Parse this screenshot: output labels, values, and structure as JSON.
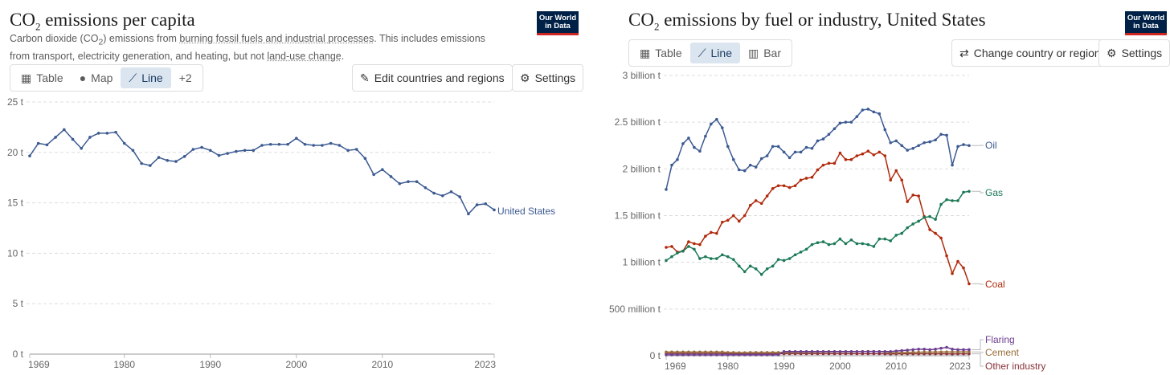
{
  "left": {
    "title_pre": "CO",
    "title_sub": "2",
    "title_post": " emissions per capita",
    "subtitle_parts": [
      "Carbon dioxide (CO",
      "2",
      ") emissions from ",
      "burning fossil fuels and industrial processes",
      ". This includes emissions from transport, electricity generation, and heating, but not ",
      "land-use change",
      "."
    ],
    "logo": "Our World in Data",
    "tabs": [
      {
        "label": "Table",
        "icon": "table-icon"
      },
      {
        "label": "Map",
        "icon": "globe-icon"
      },
      {
        "label": "Line",
        "icon": "line-chart-icon",
        "active": true
      },
      {
        "label": "+2"
      }
    ],
    "edit_button": "Edit countries and regions",
    "settings_button": "Settings"
  },
  "right": {
    "title_pre": "CO",
    "title_sub": "2",
    "title_post": " emissions by fuel or industry, United States",
    "logo": "Our World in Data",
    "tabs": [
      {
        "label": "Table",
        "icon": "table-icon"
      },
      {
        "label": "Line",
        "icon": "line-chart-icon",
        "active": true
      },
      {
        "label": "Bar",
        "icon": "bar-chart-icon"
      }
    ],
    "change_button": "Change country or region",
    "settings_button": "Settings"
  },
  "chart_data": [
    {
      "type": "line",
      "title": "CO2 emissions per capita",
      "ylabel": "t",
      "ylim": [
        0,
        25
      ],
      "yticks": [
        {
          "v": 0,
          "label": "0 t"
        },
        {
          "v": 5,
          "label": "5 t"
        },
        {
          "v": 10,
          "label": "10 t"
        },
        {
          "v": 15,
          "label": "15 t"
        },
        {
          "v": 20,
          "label": "20 t"
        },
        {
          "v": 25,
          "label": "25 t"
        }
      ],
      "xticks": [
        1969,
        1980,
        1990,
        2000,
        2010,
        2023
      ],
      "xstart": 1969,
      "xend": 2023,
      "series": [
        {
          "name": "United States",
          "color": "#3c5a92",
          "values": [
            19.65,
            20.9,
            20.75,
            21.5,
            22.26,
            21.3,
            20.4,
            21.5,
            21.9,
            21.9,
            22.0,
            20.9,
            20.2,
            18.9,
            18.7,
            19.5,
            19.2,
            19.1,
            19.6,
            20.3,
            20.5,
            20.2,
            19.7,
            19.9,
            20.1,
            20.2,
            20.2,
            20.7,
            20.8,
            20.8,
            20.8,
            21.4,
            20.8,
            20.7,
            20.7,
            20.9,
            20.7,
            20.2,
            20.3,
            19.4,
            17.8,
            18.3,
            17.6,
            16.9,
            17.1,
            17.1,
            16.5,
            15.96,
            15.7,
            16.1,
            15.6,
            13.9,
            14.8,
            14.9,
            14.3
          ]
        }
      ]
    },
    {
      "type": "line",
      "title": "CO2 emissions by fuel or industry, United States",
      "ylabel": "billion t",
      "ylim": [
        0,
        3
      ],
      "yticks": [
        {
          "v": 0,
          "label": "0 t"
        },
        {
          "v": 0.5,
          "label": "500 million t"
        },
        {
          "v": 1,
          "label": "1 billion t"
        },
        {
          "v": 1.5,
          "label": "1.5 billion t"
        },
        {
          "v": 2,
          "label": "2 billion t"
        },
        {
          "v": 2.5,
          "label": "2.5 billion t"
        },
        {
          "v": 3,
          "label": "3 billion t"
        }
      ],
      "xticks": [
        1969,
        1980,
        1990,
        2000,
        2010,
        2023
      ],
      "xstart": 1969,
      "xend": 2023,
      "series": [
        {
          "name": "Oil",
          "color": "#3c5a92",
          "values": [
            1.78,
            2.04,
            2.1,
            2.27,
            2.33,
            2.23,
            2.19,
            2.35,
            2.48,
            2.53,
            2.44,
            2.24,
            2.1,
            1.99,
            1.98,
            2.04,
            2.02,
            2.11,
            2.14,
            2.24,
            2.24,
            2.18,
            2.12,
            2.18,
            2.18,
            2.23,
            2.22,
            2.3,
            2.32,
            2.37,
            2.43,
            2.49,
            2.5,
            2.5,
            2.56,
            2.63,
            2.64,
            2.61,
            2.59,
            2.42,
            2.28,
            2.3,
            2.25,
            2.2,
            2.22,
            2.25,
            2.28,
            2.29,
            2.31,
            2.37,
            2.36,
            2.04,
            2.24,
            2.26,
            2.25
          ]
        },
        {
          "name": "Gas",
          "color": "#1b7a55",
          "values": [
            1.02,
            1.06,
            1.1,
            1.12,
            1.17,
            1.14,
            1.04,
            1.06,
            1.04,
            1.04,
            1.08,
            1.06,
            1.03,
            0.96,
            0.9,
            0.96,
            0.93,
            0.87,
            0.93,
            0.96,
            1.03,
            1.02,
            1.04,
            1.08,
            1.11,
            1.14,
            1.19,
            1.21,
            1.22,
            1.19,
            1.2,
            1.25,
            1.2,
            1.24,
            1.2,
            1.2,
            1.19,
            1.17,
            1.25,
            1.25,
            1.23,
            1.29,
            1.31,
            1.37,
            1.41,
            1.44,
            1.48,
            1.49,
            1.46,
            1.62,
            1.67,
            1.66,
            1.66,
            1.75,
            1.76
          ]
        },
        {
          "name": "Coal",
          "color": "#b02a0c",
          "values": [
            1.16,
            1.17,
            1.11,
            1.12,
            1.22,
            1.2,
            1.19,
            1.28,
            1.32,
            1.31,
            1.43,
            1.45,
            1.5,
            1.44,
            1.5,
            1.61,
            1.66,
            1.63,
            1.71,
            1.79,
            1.82,
            1.82,
            1.8,
            1.82,
            1.88,
            1.9,
            1.91,
            1.99,
            2.04,
            2.06,
            2.06,
            2.17,
            2.1,
            2.1,
            2.14,
            2.16,
            2.19,
            2.15,
            2.18,
            2.14,
            1.88,
            1.98,
            1.88,
            1.65,
            1.72,
            1.71,
            1.49,
            1.35,
            1.31,
            1.26,
            1.07,
            0.88,
            1.01,
            0.94,
            0.77
          ]
        },
        {
          "name": "Flaring",
          "color": "#6d3e91",
          "values": [
            0.01,
            0.01,
            0.01,
            0.01,
            0.01,
            0.01,
            0.01,
            0.01,
            0.01,
            0.01,
            0.01,
            0.01,
            0.01,
            0.01,
            0.01,
            0.01,
            0.01,
            0.01,
            0.01,
            0.01,
            0.01,
            0.045,
            0.045,
            0.045,
            0.045,
            0.045,
            0.045,
            0.045,
            0.045,
            0.045,
            0.045,
            0.045,
            0.045,
            0.045,
            0.045,
            0.045,
            0.045,
            0.045,
            0.045,
            0.045,
            0.045,
            0.05,
            0.055,
            0.06,
            0.065,
            0.07,
            0.07,
            0.065,
            0.07,
            0.08,
            0.09,
            0.07,
            0.065,
            0.065,
            0.065
          ]
        },
        {
          "name": "Cement",
          "color": "#996d39",
          "values": [
            0.04,
            0.04,
            0.04,
            0.04,
            0.04,
            0.04,
            0.04,
            0.04,
            0.04,
            0.04,
            0.04,
            0.035,
            0.035,
            0.033,
            0.033,
            0.035,
            0.035,
            0.035,
            0.035,
            0.035,
            0.035,
            0.035,
            0.035,
            0.036,
            0.037,
            0.038,
            0.038,
            0.039,
            0.04,
            0.04,
            0.041,
            0.041,
            0.041,
            0.042,
            0.043,
            0.045,
            0.046,
            0.046,
            0.044,
            0.04,
            0.03,
            0.032,
            0.032,
            0.035,
            0.037,
            0.038,
            0.039,
            0.039,
            0.04,
            0.04,
            0.041,
            0.04,
            0.041,
            0.041,
            0.041
          ]
        },
        {
          "name": "Other industry",
          "color": "#883039",
          "values": [
            0.025,
            0.025,
            0.025,
            0.025,
            0.025,
            0.025,
            0.025,
            0.025,
            0.025,
            0.025,
            0.025,
            0.022,
            0.022,
            0.02,
            0.02,
            0.02,
            0.02,
            0.02,
            0.02,
            0.022,
            0.022,
            0.022,
            0.022,
            0.022,
            0.022,
            0.022,
            0.022,
            0.022,
            0.022,
            0.022,
            0.022,
            0.022,
            0.022,
            0.022,
            0.022,
            0.022,
            0.022,
            0.022,
            0.022,
            0.02,
            0.018,
            0.02,
            0.02,
            0.02,
            0.02,
            0.02,
            0.02,
            0.02,
            0.02,
            0.02,
            0.02,
            0.018,
            0.02,
            0.02,
            0.02
          ]
        }
      ]
    }
  ]
}
